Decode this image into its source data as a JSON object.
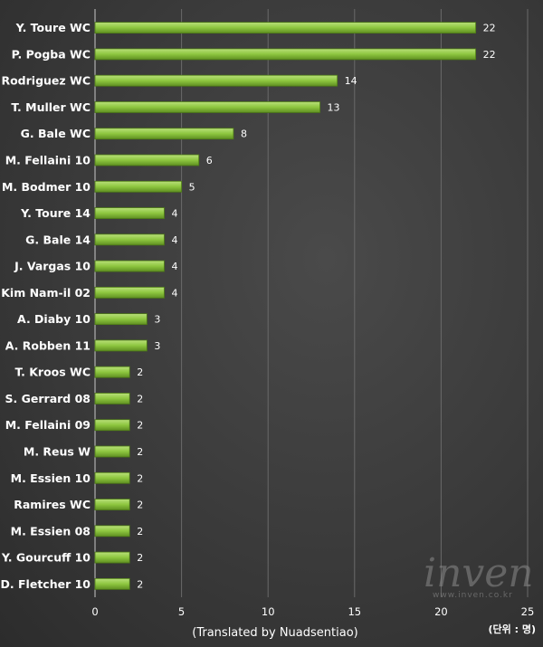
{
  "chart_data": {
    "type": "bar",
    "orientation": "horizontal",
    "categories": [
      "Y. Toure WC",
      "P. Pogba WC",
      "J. Rodriguez WC",
      "T. Muller WC",
      "G. Bale WC",
      "M. Fellaini 10",
      "M. Bodmer 10",
      "Y. Toure 14",
      "G. Bale 14",
      "J. Vargas 10",
      "Kim Nam-il 02",
      "A. Diaby 10",
      "A. Robben 11",
      "T. Kroos WC",
      "S. Gerrard 08",
      "M. Fellaini 09",
      "M. Reus W",
      "M. Essien 10",
      "Ramires WC",
      "M. Essien 08",
      "Y. Gourcuff 10",
      "D. Fletcher 10"
    ],
    "values": [
      22,
      22,
      14,
      13,
      8,
      6,
      5,
      4,
      4,
      4,
      4,
      3,
      3,
      2,
      2,
      2,
      2,
      2,
      2,
      2,
      2,
      2
    ],
    "xlabel": "(Translated by Nuadsentiao)",
    "xlim": [
      0,
      25
    ],
    "xticks": [
      "0",
      "5",
      "10",
      "15",
      "20",
      "25"
    ],
    "unit_note": "(단위 : 명)",
    "bar_color": "#8dc63f",
    "grid": true
  },
  "watermark": {
    "brand": "inven",
    "site": "www.inven.co.kr"
  }
}
